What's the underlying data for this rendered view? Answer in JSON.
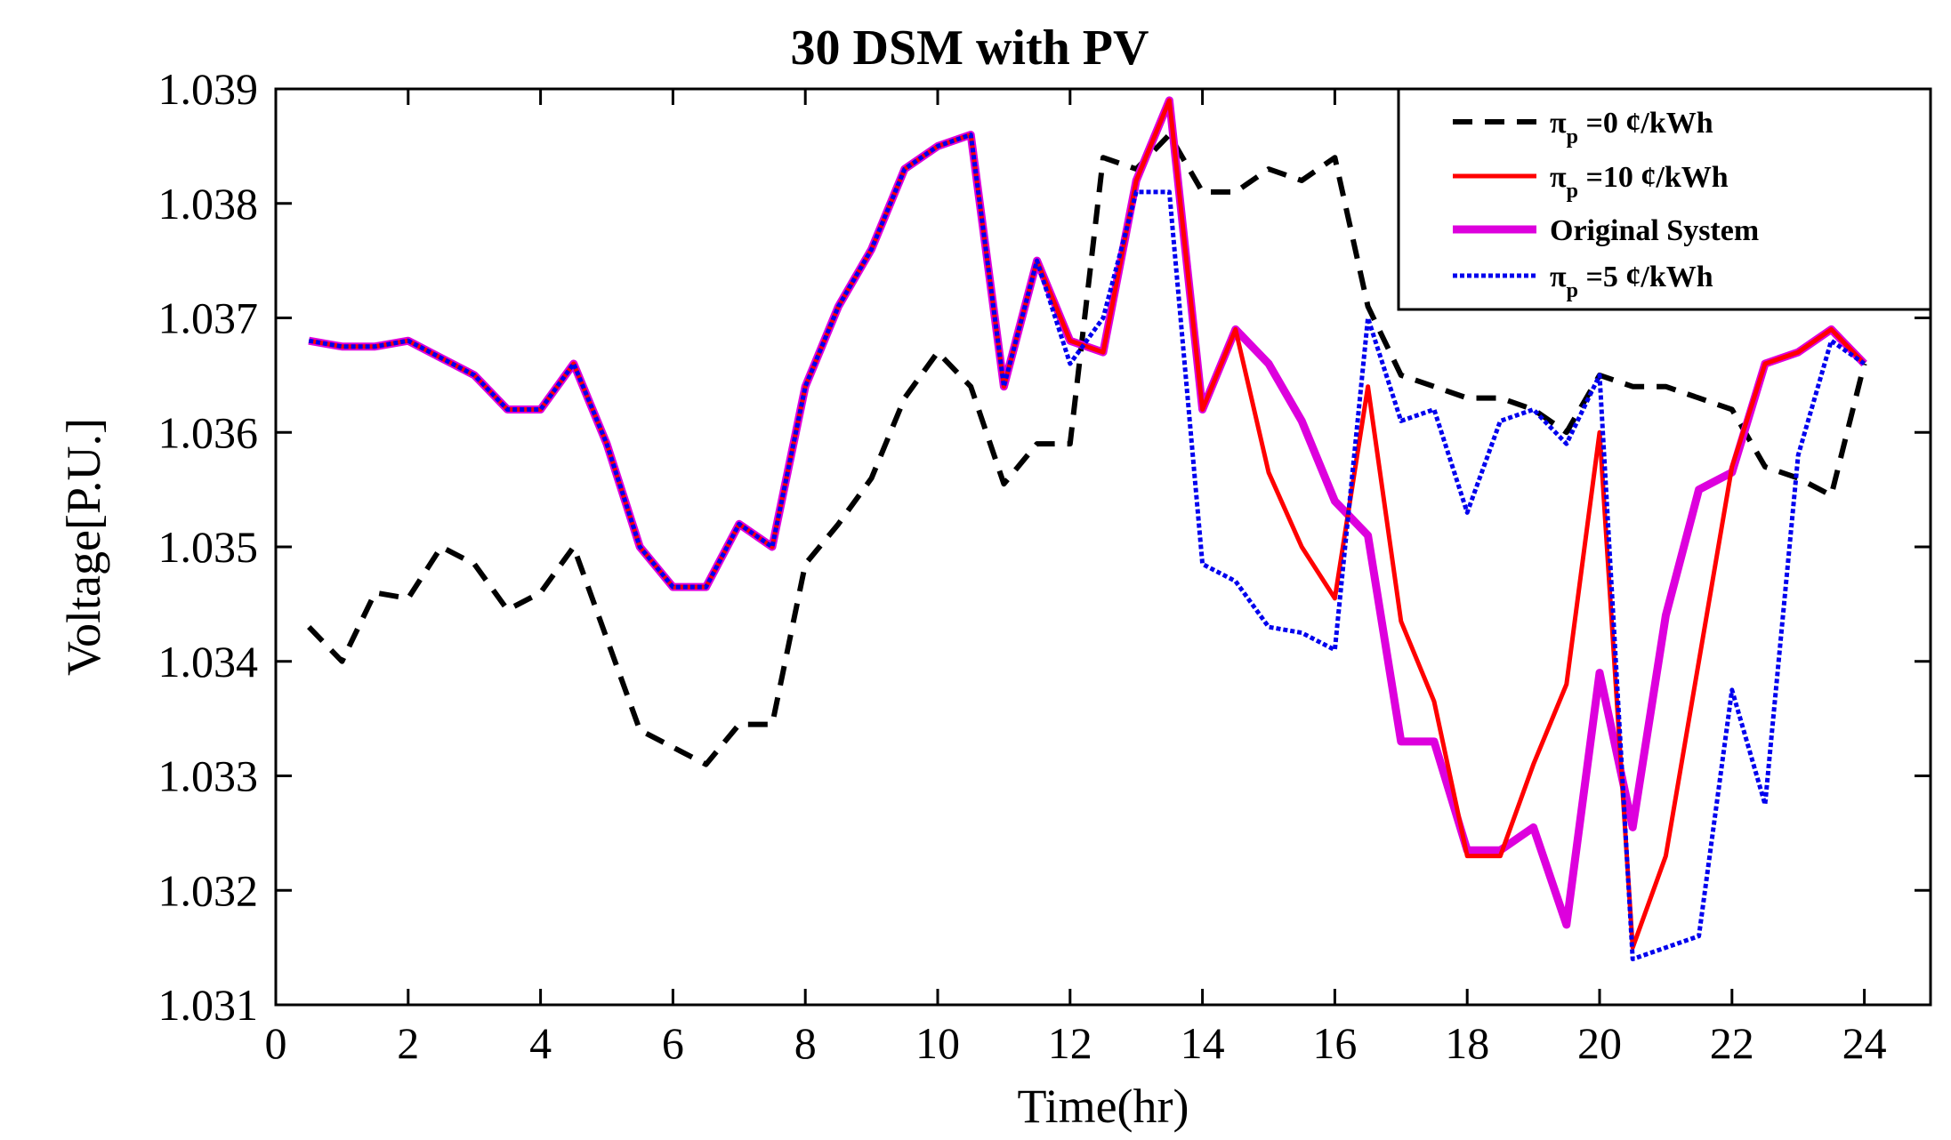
{
  "chart_data": {
    "type": "line",
    "title": "30 DSM with PV",
    "xlabel": "Time(hr)",
    "ylabel": "Voltage[P.U.]",
    "xlim": [
      0,
      25
    ],
    "ylim": [
      1.031,
      1.039
    ],
    "xticks": [
      0,
      2,
      4,
      6,
      8,
      10,
      12,
      14,
      16,
      18,
      20,
      22,
      24
    ],
    "xtick_labels": [
      "0",
      "2",
      "4",
      "6",
      "8",
      "10",
      "12",
      "14",
      "16",
      "18",
      "20",
      "22",
      "24"
    ],
    "yticks": [
      1.031,
      1.032,
      1.033,
      1.034,
      1.035,
      1.036,
      1.037,
      1.038,
      1.039
    ],
    "ytick_labels": [
      "1.031",
      "1.032",
      "1.033",
      "1.034",
      "1.035",
      "1.036",
      "1.037",
      "1.038",
      "1.039"
    ],
    "grid": false,
    "legend_position": "top-right",
    "x": [
      0.5,
      1,
      1.5,
      2,
      2.5,
      3,
      3.5,
      4,
      4.5,
      5,
      5.5,
      6,
      6.5,
      7,
      7.5,
      8,
      8.5,
      9,
      9.5,
      10,
      10.5,
      11,
      11.5,
      12,
      12.5,
      13,
      13.5,
      14,
      14.5,
      15,
      15.5,
      16,
      16.5,
      17,
      17.5,
      18,
      18.5,
      19,
      19.5,
      20,
      20.5,
      21,
      21.5,
      22,
      22.5,
      23,
      23.5,
      24
    ],
    "series": [
      {
        "name_symbol": "π",
        "name_sub": "p",
        "name_rest": " =0 ¢/kWh",
        "color": "#000000",
        "style": "dashed",
        "values": [
          1.0343,
          1.034,
          1.0346,
          1.03455,
          1.035,
          1.03485,
          1.03445,
          1.0346,
          1.035,
          1.0342,
          1.0334,
          1.03325,
          1.0331,
          1.03345,
          1.03345,
          1.03485,
          1.0352,
          1.0356,
          1.0363,
          1.0367,
          1.0364,
          1.03555,
          1.0359,
          1.0359,
          1.0384,
          1.0383,
          1.0386,
          1.0381,
          1.0381,
          1.0383,
          1.0382,
          1.0384,
          1.0371,
          1.0365,
          1.0364,
          1.0363,
          1.0363,
          1.0362,
          1.036,
          1.0365,
          1.0364,
          1.0364,
          1.0363,
          1.0362,
          1.0357,
          1.0356,
          1.03545,
          1.0366
        ]
      },
      {
        "name_symbol": "π",
        "name_sub": "p",
        "name_rest": " =10 ¢/kWh",
        "color": "#ff0000",
        "style": "solid",
        "values": [
          1.0368,
          1.03675,
          1.03675,
          1.0368,
          1.03665,
          1.0365,
          1.0362,
          1.0362,
          1.0366,
          1.0359,
          1.035,
          1.03465,
          1.03465,
          1.0352,
          1.035,
          1.0364,
          1.0371,
          1.0376,
          1.0383,
          1.0385,
          1.0386,
          1.0364,
          1.0375,
          1.0368,
          1.0367,
          1.0382,
          1.0389,
          1.0362,
          1.0369,
          1.03565,
          1.035,
          1.03455,
          1.0364,
          1.03435,
          1.03365,
          1.0323,
          1.0323,
          1.0331,
          1.0338,
          1.036,
          1.0315,
          1.0323,
          1.034,
          1.0357,
          1.0366,
          1.0367,
          1.0369,
          1.0366
        ]
      },
      {
        "name": "Original System",
        "color": "#dd00dd",
        "style": "solid",
        "values": [
          1.0368,
          1.03675,
          1.03675,
          1.0368,
          1.03665,
          1.0365,
          1.0362,
          1.0362,
          1.0366,
          1.0359,
          1.035,
          1.03465,
          1.03465,
          1.0352,
          1.035,
          1.0364,
          1.0371,
          1.0376,
          1.0383,
          1.0385,
          1.0386,
          1.0364,
          1.0375,
          1.0368,
          1.0367,
          1.0382,
          1.0389,
          1.0362,
          1.0369,
          1.0366,
          1.0361,
          1.0354,
          1.0351,
          1.0333,
          1.0333,
          1.03235,
          1.03235,
          1.03255,
          1.0317,
          1.0339,
          1.03255,
          1.0344,
          1.0355,
          1.03565,
          1.0366,
          1.0367,
          1.0369,
          1.0366
        ]
      },
      {
        "name_symbol": "π",
        "name_sub": "p",
        "name_rest": " =5 ¢/kWh",
        "color": "#0000ee",
        "style": "dotted",
        "values": [
          1.0368,
          1.03675,
          1.03675,
          1.0368,
          1.03665,
          1.0365,
          1.0362,
          1.0362,
          1.0366,
          1.0359,
          1.035,
          1.03465,
          1.03465,
          1.0352,
          1.035,
          1.0364,
          1.0371,
          1.0376,
          1.0383,
          1.0385,
          1.0386,
          1.0364,
          1.0375,
          1.0366,
          1.037,
          1.0381,
          1.0381,
          1.03485,
          1.0347,
          1.0343,
          1.03425,
          1.0341,
          1.037,
          1.0361,
          1.0362,
          1.0353,
          1.0361,
          1.0362,
          1.0359,
          1.0365,
          1.0314,
          1.0315,
          1.0316,
          1.03375,
          1.03275,
          1.0358,
          1.0368,
          1.0366
        ]
      }
    ]
  }
}
